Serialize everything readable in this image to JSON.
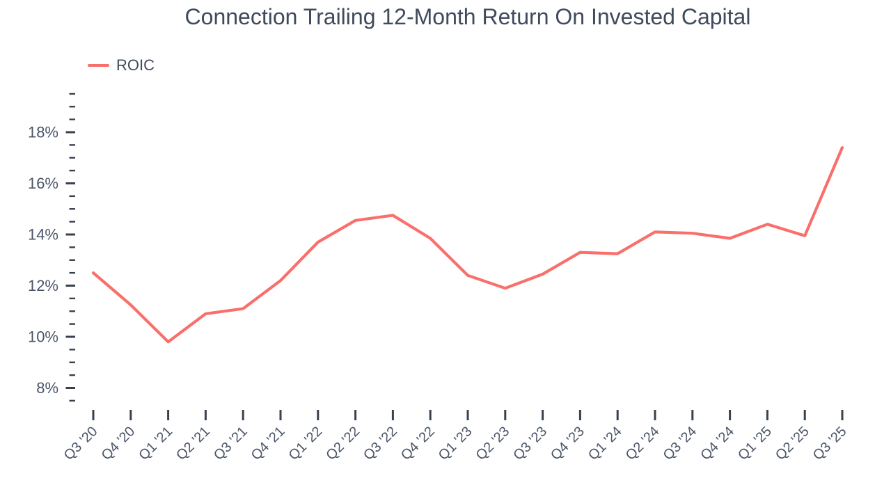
{
  "page": {
    "background": "#ffffff"
  },
  "chart_data": {
    "type": "line",
    "title": "Connection Trailing 12-Month Return On Invested Capital",
    "legend": {
      "position": "top-left",
      "entries": [
        "ROIC"
      ]
    },
    "categories": [
      "Q3 '20",
      "Q4 '20",
      "Q1 '21",
      "Q2 '21",
      "Q3 '21",
      "Q4 '21",
      "Q1 '22",
      "Q2 '22",
      "Q3 '22",
      "Q4 '22",
      "Q1 '23",
      "Q2 '23",
      "Q3 '23",
      "Q4 '23",
      "Q1 '24",
      "Q2 '24",
      "Q3 '24",
      "Q4 '24",
      "Q1 '25",
      "Q2 '25",
      "Q3 '25"
    ],
    "series": [
      {
        "name": "ROIC",
        "color": "#F96F6C",
        "unit": "%",
        "values": [
          12.5,
          11.25,
          9.8,
          10.9,
          11.1,
          12.2,
          13.7,
          14.55,
          14.75,
          13.85,
          12.4,
          11.9,
          12.45,
          13.3,
          13.25,
          14.1,
          14.05,
          13.85,
          14.4,
          13.95,
          17.4
        ]
      }
    ],
    "xlabel": "",
    "ylabel": "",
    "y_axis": {
      "range": [
        7.5,
        19.5
      ],
      "minor_step": 0.5,
      "major_ticks": [
        8,
        10,
        12,
        14,
        16,
        18
      ],
      "major_tick_labels": [
        "8%",
        "10%",
        "12%",
        "14%",
        "16%",
        "18%"
      ]
    },
    "x_axis": {
      "tick_per_category": true,
      "label_rotation_deg": 45
    },
    "grid": false,
    "colors": {
      "title": "#3F4A5C",
      "axis_label": "#4A5568",
      "tick": "#39414E",
      "background": "#ffffff"
    }
  }
}
